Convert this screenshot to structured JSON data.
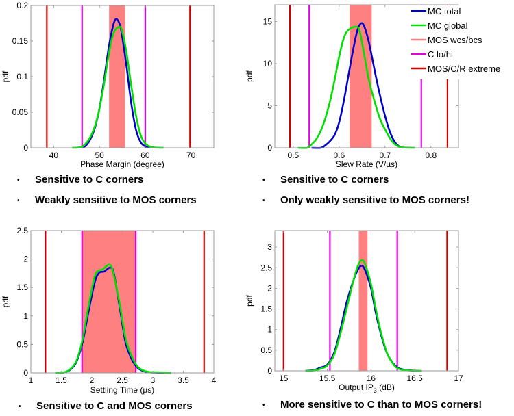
{
  "colors": {
    "mc_total": "#0000cc",
    "mc_global": "#00e000",
    "mos_band": "#ff8080",
    "c_lohi": "#e000e0",
    "extreme": "#d00000",
    "axis": "#999999"
  },
  "legend": {
    "placement": "top-right",
    "entries": [
      {
        "label": "MC total",
        "color_key": "mc_total"
      },
      {
        "label": "MC global",
        "color_key": "mc_global"
      },
      {
        "label": "MOS wcs/bcs",
        "color_key": "mos_band"
      },
      {
        "label": "C lo/hi",
        "color_key": "c_lohi"
      },
      {
        "label": "MOS/C/R extreme",
        "color_key": "extreme"
      }
    ]
  },
  "bullets": [
    {
      "chart": 0,
      "items": [
        "Sensitive to C corners",
        "Weakly sensitive to MOS corners"
      ]
    },
    {
      "chart": 1,
      "items": [
        "Sensitive to C corners",
        "Only weakly sensitive to MOS corners!"
      ]
    },
    {
      "chart": 2,
      "items": [
        "Sensitive to C and MOS corners"
      ]
    },
    {
      "chart": 3,
      "items": [
        "More sensitive to C than to MOS corners!"
      ]
    }
  ],
  "chart_data": [
    {
      "type": "line",
      "title": "",
      "xlabel": "Phase Margin (degree)",
      "ylabel": "pdf",
      "xlim": [
        35,
        75
      ],
      "ylim": [
        0,
        0.2
      ],
      "xticks": [
        40,
        50,
        60,
        70
      ],
      "xtick_labels": [
        "40",
        "50",
        "60",
        "70"
      ],
      "yticks": [
        0,
        0.05,
        0.1,
        0.15,
        0.2
      ],
      "ytick_labels": [
        "0",
        "0.05",
        "0.1",
        "0.15",
        "0.2"
      ],
      "grid": false,
      "mos_band": [
        52.1,
        55.6
      ],
      "c_lohi": [
        46.2,
        60.0
      ],
      "extreme": [
        38.5,
        69.8
      ],
      "series": [
        {
          "name": "MC total",
          "x": [
            46,
            47,
            48,
            49,
            50,
            51,
            52,
            53,
            53.7,
            54.5,
            55,
            56,
            57,
            58,
            59,
            60,
            61
          ],
          "y": [
            0,
            0.003,
            0.012,
            0.028,
            0.055,
            0.095,
            0.14,
            0.172,
            0.181,
            0.172,
            0.155,
            0.11,
            0.06,
            0.025,
            0.008,
            0.002,
            0
          ]
        },
        {
          "name": "MC global",
          "x": [
            44,
            46,
            47,
            48,
            49,
            50,
            51,
            52,
            53,
            54.3,
            55,
            56,
            57,
            58,
            59,
            60,
            61,
            62,
            64
          ],
          "y": [
            0,
            0.001,
            0.006,
            0.015,
            0.03,
            0.055,
            0.09,
            0.13,
            0.16,
            0.17,
            0.163,
            0.13,
            0.085,
            0.045,
            0.018,
            0.006,
            0.002,
            0.0005,
            0
          ]
        }
      ]
    },
    {
      "type": "line",
      "title": "",
      "xlabel": "Slew Rate (V/µs)",
      "ylabel": "pdf",
      "xlim": [
        0.46,
        0.86
      ],
      "ylim": [
        0,
        17
      ],
      "xticks": [
        0.5,
        0.6,
        0.7,
        0.8
      ],
      "xtick_labels": [
        "0.5",
        "0.6",
        "0.7",
        "0.8"
      ],
      "yticks": [
        0,
        5,
        10,
        15
      ],
      "ytick_labels": [
        "0",
        "5",
        "10",
        "15"
      ],
      "grid": false,
      "legend": true,
      "mos_band": [
        0.623,
        0.671
      ],
      "c_lohi": [
        0.535,
        0.779
      ],
      "extreme": [
        0.493,
        0.836
      ],
      "series": [
        {
          "name": "MC total",
          "x": [
            0.54,
            0.56,
            0.57,
            0.58,
            0.59,
            0.6,
            0.61,
            0.62,
            0.63,
            0.64,
            0.648,
            0.655,
            0.665,
            0.68,
            0.69,
            0.7,
            0.71,
            0.72,
            0.73,
            0.74
          ],
          "y": [
            0,
            0,
            0.3,
            0.8,
            1.5,
            3,
            5.5,
            8.5,
            11.5,
            14,
            14.8,
            14.4,
            12.5,
            8.5,
            6,
            3.8,
            2,
            0.8,
            0.2,
            0
          ]
        },
        {
          "name": "MC global",
          "x": [
            0.51,
            0.53,
            0.54,
            0.55,
            0.56,
            0.57,
            0.58,
            0.59,
            0.6,
            0.61,
            0.62,
            0.637,
            0.645,
            0.655,
            0.665,
            0.68,
            0.69,
            0.7,
            0.71,
            0.72,
            0.73,
            0.74,
            0.765
          ],
          "y": [
            0,
            0,
            0.4,
            1,
            2,
            3.5,
            5.5,
            8,
            10.8,
            13,
            14,
            14.4,
            13.8,
            11,
            8,
            5,
            3.3,
            2.2,
            1.2,
            0.5,
            0.15,
            0.03,
            0
          ]
        }
      ]
    },
    {
      "type": "line",
      "title": "",
      "xlabel": "Settling Time (µs)",
      "ylabel": "pdf",
      "xlim": [
        1,
        4
      ],
      "ylim": [
        0,
        2.5
      ],
      "xticks": [
        1,
        1.5,
        2,
        2.5,
        3,
        3.5,
        4
      ],
      "xtick_labels": [
        "1",
        "1.5",
        "2",
        "2.5",
        "3",
        "3.5",
        "4"
      ],
      "yticks": [
        0,
        0.5,
        1,
        1.5,
        2,
        2.5
      ],
      "ytick_labels": [
        "0",
        "0.5",
        "1",
        "1.5",
        "2",
        "2.5"
      ],
      "grid": false,
      "mos_band": [
        1.84,
        2.72
      ],
      "c_lohi": [
        1.84,
        2.72
      ],
      "extreme": [
        1.24,
        3.84
      ],
      "series": [
        {
          "name": "MC total",
          "x": [
            1.4,
            1.55,
            1.65,
            1.75,
            1.85,
            1.95,
            2.05,
            2.12,
            2.2,
            2.3,
            2.36,
            2.45,
            2.55,
            2.65,
            2.75,
            2.85,
            2.95,
            3.1,
            3.3
          ],
          "y": [
            0,
            0.01,
            0.06,
            0.2,
            0.55,
            1.1,
            1.6,
            1.76,
            1.78,
            1.85,
            1.75,
            1.2,
            0.55,
            0.25,
            0.09,
            0.03,
            0.01,
            0.005,
            0
          ]
        },
        {
          "name": "MC global",
          "x": [
            1.4,
            1.55,
            1.65,
            1.75,
            1.85,
            1.95,
            2.05,
            2.12,
            2.18,
            2.28,
            2.34,
            2.45,
            2.55,
            2.65,
            2.75,
            2.85,
            2.95,
            3.1,
            3.3
          ],
          "y": [
            0,
            0.01,
            0.07,
            0.22,
            0.6,
            1.2,
            1.7,
            1.8,
            1.82,
            1.9,
            1.8,
            1.25,
            0.62,
            0.3,
            0.11,
            0.04,
            0.015,
            0.01,
            0
          ]
        }
      ]
    },
    {
      "type": "line",
      "title": "",
      "xlabel": "Output IP3 (dB)",
      "ylabel": "pdf",
      "xlim": [
        14.9,
        17
      ],
      "ylim": [
        0,
        3.4
      ],
      "xticks": [
        15,
        15.5,
        16,
        16.5,
        17
      ],
      "xtick_labels": [
        "15",
        "15.5",
        "16",
        "16.5",
        "17"
      ],
      "yticks": [
        0,
        0.5,
        1,
        1.5,
        2,
        2.5,
        3
      ],
      "ytick_labels": [
        "0",
        "0.5",
        "1",
        "1.5",
        "2",
        "2.5",
        "3"
      ],
      "grid": false,
      "mos_band": [
        15.86,
        15.96
      ],
      "c_lohi": [
        15.53,
        16.3
      ],
      "extreme": [
        15.0,
        16.87
      ],
      "series": [
        {
          "name": "MC total",
          "x": [
            15.25,
            15.35,
            15.42,
            15.5,
            15.58,
            15.65,
            15.72,
            15.8,
            15.85,
            15.89,
            15.93,
            16.0,
            16.05,
            16.1,
            16.15,
            16.2,
            16.28,
            16.35,
            16.45,
            16.55
          ],
          "y": [
            0,
            0.02,
            0.08,
            0.15,
            0.45,
            1.0,
            1.65,
            2.2,
            2.45,
            2.55,
            2.45,
            2.0,
            1.45,
            1.0,
            0.62,
            0.35,
            0.12,
            0.04,
            0.01,
            0
          ]
        },
        {
          "name": "MC global",
          "x": [
            15.25,
            15.35,
            15.42,
            15.5,
            15.58,
            15.65,
            15.72,
            15.8,
            15.85,
            15.89,
            15.93,
            16.0,
            16.05,
            16.1,
            16.15,
            16.2,
            16.28,
            16.35,
            16.45,
            16.58
          ],
          "y": [
            0,
            0.01,
            0.05,
            0.13,
            0.4,
            0.9,
            1.5,
            2.2,
            2.55,
            2.68,
            2.6,
            2.1,
            1.55,
            1.05,
            0.65,
            0.35,
            0.1,
            0.03,
            0.008,
            0
          ]
        }
      ]
    }
  ]
}
